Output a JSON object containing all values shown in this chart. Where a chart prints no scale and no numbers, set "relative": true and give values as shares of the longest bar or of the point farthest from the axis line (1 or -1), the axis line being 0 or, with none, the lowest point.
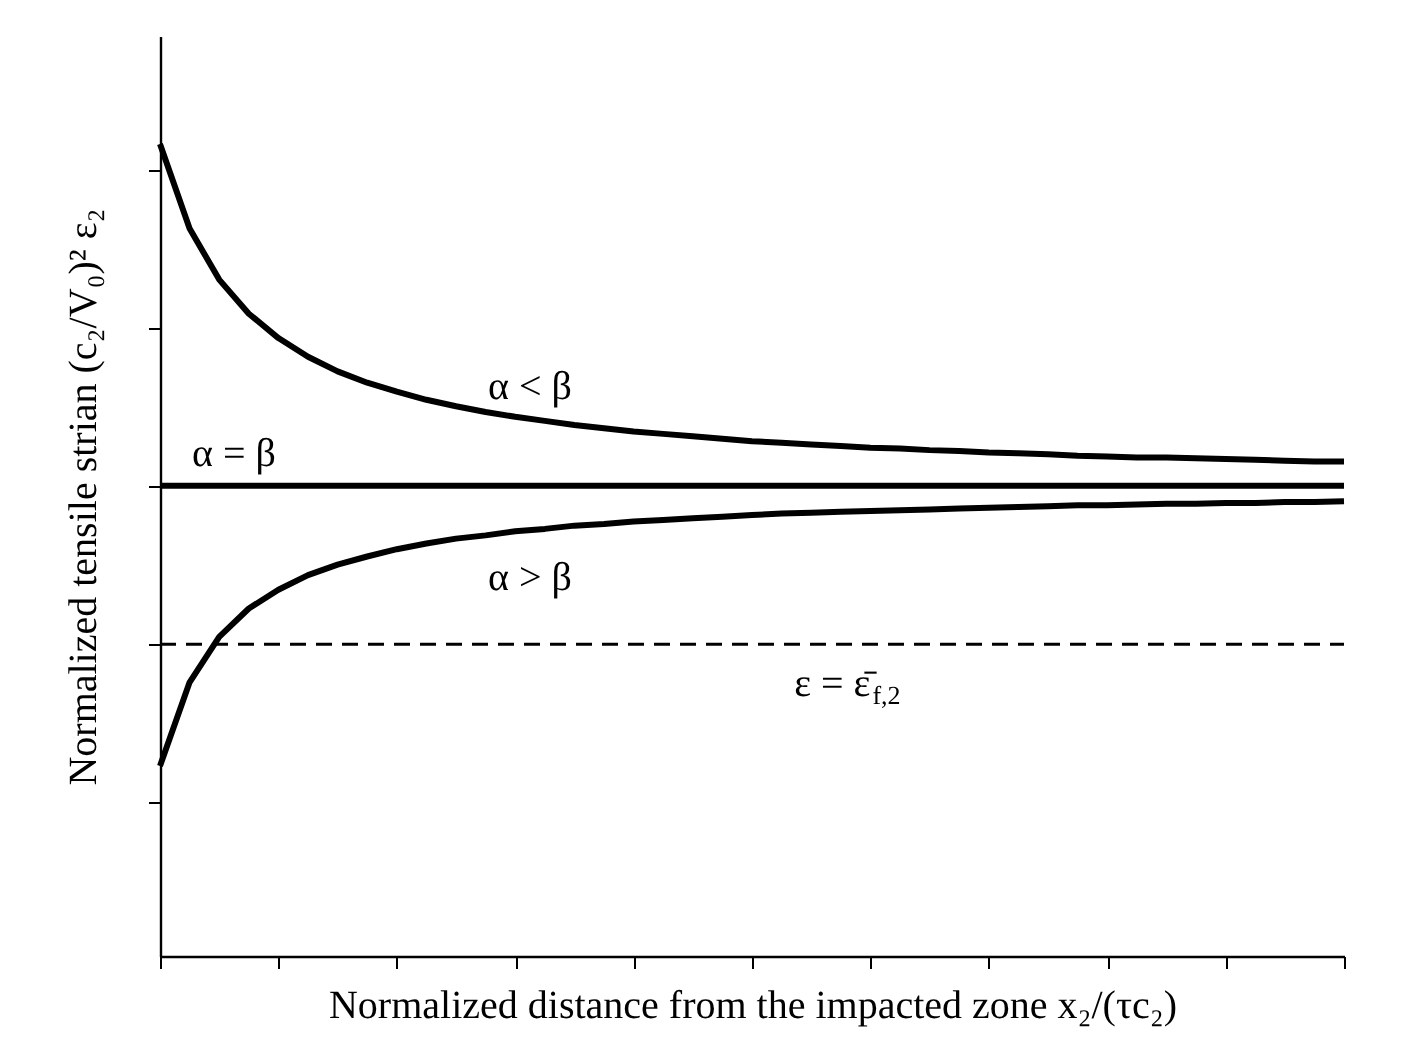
{
  "chart_data": {
    "type": "line",
    "relative": true,
    "xlabel": "Normalized distance from the impacted zone x₂/(τc₂)",
    "ylabel": "Normalized tensile strian (c₂/V₀)² ε₂",
    "tick_labels": false,
    "grid": false,
    "line_style": "solid",
    "marker": "none",
    "categories": [
      null,
      null,
      null,
      null,
      null,
      null,
      null,
      null,
      null,
      null,
      null,
      null,
      null,
      null,
      null,
      null,
      null,
      null,
      null,
      null,
      null,
      null,
      null,
      null,
      null,
      null,
      null,
      null,
      null,
      null,
      null,
      null,
      null,
      null,
      null,
      null,
      null,
      null,
      null,
      null,
      null
    ],
    "series": [
      {
        "name": "α < β",
        "color": "#000000",
        "values": [
          1.0,
          0.896,
          0.833,
          0.791,
          0.761,
          0.738,
          0.72,
          0.706,
          0.695,
          0.685,
          0.677,
          0.67,
          0.664,
          0.659,
          0.654,
          0.65,
          0.646,
          0.643,
          0.64,
          0.637,
          0.634,
          0.632,
          0.63,
          0.628,
          0.626,
          0.625,
          0.623,
          0.622,
          0.62,
          0.619,
          0.618,
          0.616,
          0.615,
          0.614,
          0.614,
          0.613,
          0.612,
          0.611,
          0.61,
          0.609,
          0.609
        ]
      },
      {
        "name": "α = β",
        "color": "#000000",
        "values": [
          0.579,
          0.579,
          0.579,
          0.579,
          0.579,
          0.579,
          0.579,
          0.579,
          0.579,
          0.579,
          0.579,
          0.579,
          0.579,
          0.579,
          0.579,
          0.579,
          0.579,
          0.579,
          0.579,
          0.579,
          0.579,
          0.579,
          0.579,
          0.579,
          0.579,
          0.579,
          0.579,
          0.579,
          0.579,
          0.579,
          0.579,
          0.579,
          0.579,
          0.579,
          0.579,
          0.579,
          0.579,
          0.579,
          0.579,
          0.579,
          0.579
        ]
      },
      {
        "name": "α > β",
        "color": "#000000",
        "values": [
          0.234,
          0.337,
          0.393,
          0.428,
          0.451,
          0.469,
          0.482,
          0.492,
          0.501,
          0.508,
          0.514,
          0.518,
          0.523,
          0.526,
          0.53,
          0.532,
          0.535,
          0.537,
          0.539,
          0.541,
          0.543,
          0.545,
          0.546,
          0.547,
          0.548,
          0.549,
          0.55,
          0.551,
          0.552,
          0.553,
          0.554,
          0.555,
          0.555,
          0.556,
          0.557,
          0.557,
          0.558,
          0.558,
          0.559,
          0.559,
          0.56
        ]
      }
    ],
    "ref_lines": [
      {
        "axis": "y",
        "value": 0.384,
        "label": "ε = ε̄$_{f,2}$",
        "color": "#000000",
        "line_style": "dashed"
      }
    ]
  }
}
